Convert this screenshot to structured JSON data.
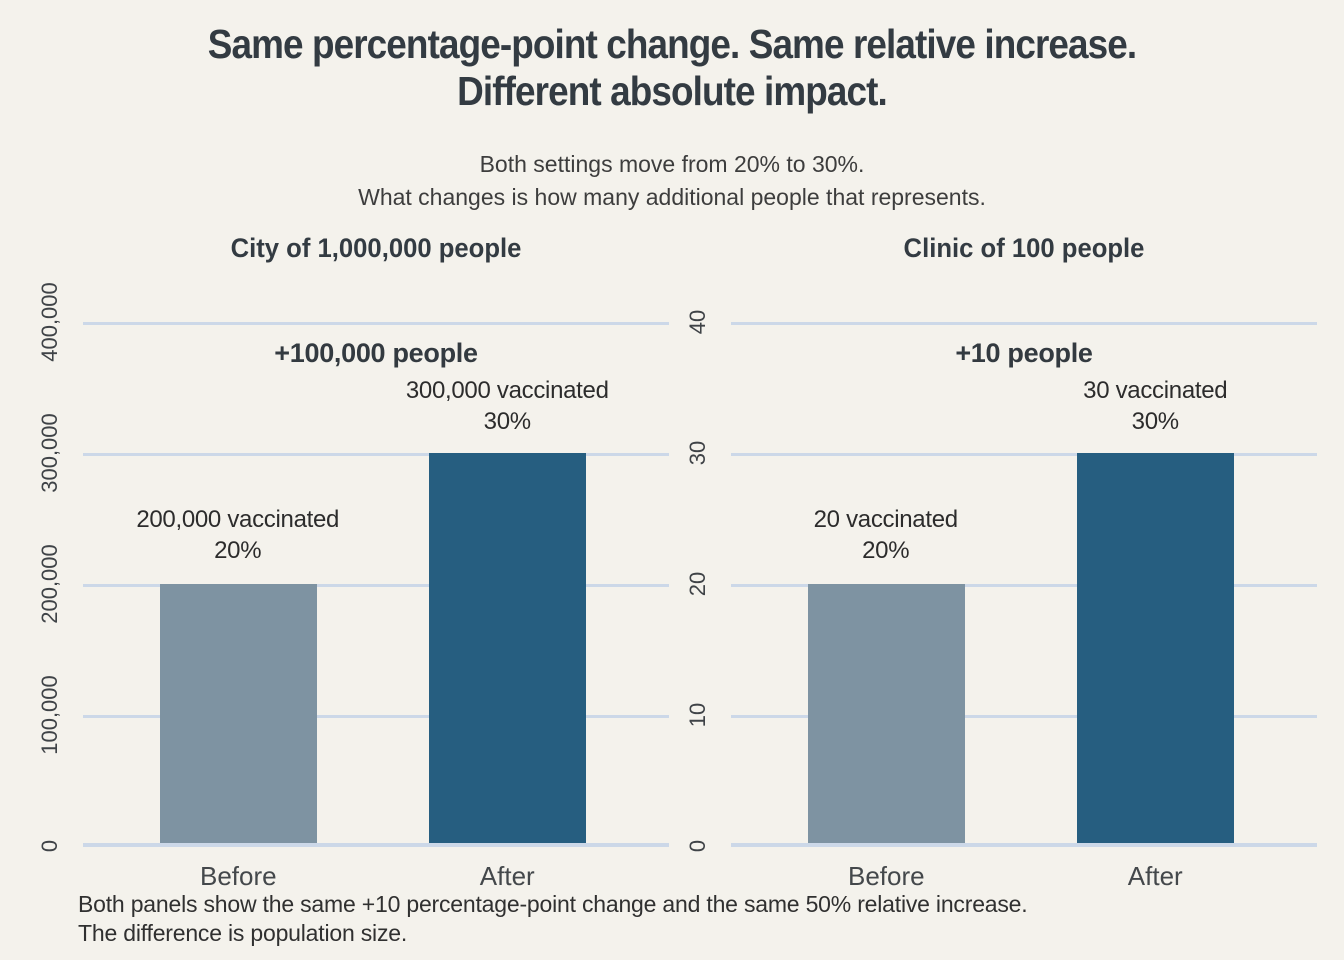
{
  "header": {
    "title_lines": [
      "Same percentage-point change. Same relative increase.",
      "Different absolute impact."
    ],
    "subtitle_lines": [
      "Both settings move from 20% to 30%.",
      "What changes is how many additional people that represents."
    ]
  },
  "caption_lines": [
    "Both panels show the same +10 percentage-point change and the same 50% relative increase.",
    "The difference is population size."
  ],
  "colors": {
    "background": "#f4f2ec",
    "gridline": "#ccd8e8",
    "bar_before": "#7e93a2",
    "bar_after": "#265e80",
    "text_dark": "#333b42"
  },
  "chart_data": [
    {
      "type": "bar",
      "title": "City of 1,000,000 people",
      "categories": [
        "Before",
        "After"
      ],
      "values": [
        200000,
        300000
      ],
      "bar_colors": [
        "#7e93a2",
        "#265e80"
      ],
      "ylim": [
        0,
        400000
      ],
      "yticks": [
        0,
        100000,
        200000,
        300000,
        400000
      ],
      "ytick_labels": [
        "0",
        "100,000",
        "200,000",
        "300,000",
        "400,000"
      ],
      "grid": "horizontal",
      "legend": "none",
      "annotations": {
        "delta": "+100,000 people",
        "after": [
          "300,000 vaccinated",
          "30%"
        ],
        "before": [
          "200,000 vaccinated",
          "20%"
        ]
      }
    },
    {
      "type": "bar",
      "title": "Clinic of 100 people",
      "categories": [
        "Before",
        "After"
      ],
      "values": [
        20,
        30
      ],
      "bar_colors": [
        "#7e93a2",
        "#265e80"
      ],
      "ylim": [
        0,
        40
      ],
      "yticks": [
        0,
        10,
        20,
        30,
        40
      ],
      "ytick_labels": [
        "0",
        "10",
        "20",
        "30",
        "40"
      ],
      "grid": "horizontal",
      "legend": "none",
      "annotations": {
        "delta": "+10 people",
        "after": [
          "30 vaccinated",
          "30%"
        ],
        "before": [
          "20 vaccinated",
          "20%"
        ]
      }
    }
  ]
}
